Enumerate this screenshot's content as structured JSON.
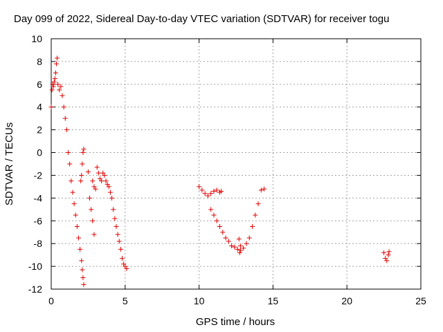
{
  "chart_data": {
    "type": "scatter",
    "title": "Day 099 of 2022, Sidereal Day-to-day VTEC variation (SDTVAR) for receiver togu",
    "xlabel": "GPS time / hours",
    "ylabel": "SDTVAR / TECUs",
    "xlim": [
      0,
      25
    ],
    "ylim": [
      -12,
      10
    ],
    "xticks": [
      "0",
      "5",
      "10",
      "15",
      "20",
      "25"
    ],
    "yticks": [
      "10",
      "8",
      "6",
      "4",
      "2",
      "0",
      "-2",
      "-4",
      "-6",
      "-8",
      "-10",
      "-12"
    ],
    "grid": true,
    "marker": "+",
    "color": "#e00000",
    "series": [
      {
        "name": "segment-1",
        "x": [
          0.0,
          0.05,
          0.1,
          0.15,
          0.2,
          0.25,
          0.3,
          0.35,
          0.4
        ],
        "y": [
          4.0,
          5.5,
          6.0,
          5.8,
          6.2,
          6.5,
          7.0,
          7.8,
          8.3
        ]
      },
      {
        "name": "segment-2",
        "x": [
          0.45,
          0.55,
          0.65,
          0.75,
          0.85,
          0.95,
          1.05,
          1.15,
          1.25,
          1.35,
          1.45,
          1.55,
          1.65,
          1.75,
          1.85,
          1.95,
          2.05,
          2.1,
          2.15,
          2.2
        ],
        "y": [
          6.0,
          5.5,
          5.8,
          5.0,
          4.0,
          3.0,
          2.0,
          0.0,
          -1.0,
          -2.5,
          -3.5,
          -4.5,
          -5.5,
          -6.5,
          -7.5,
          -8.5,
          -9.5,
          -10.3,
          -11.0,
          -11.6
        ]
      },
      {
        "name": "segment-3",
        "x": [
          2.0,
          2.05,
          2.1,
          2.15,
          2.2
        ],
        "y": [
          -2.5,
          -2.0,
          -1.0,
          0.0,
          0.3
        ]
      },
      {
        "name": "segment-4",
        "x": [
          2.5,
          2.6,
          2.7,
          2.8,
          2.9
        ],
        "y": [
          -1.7,
          -4.0,
          -5.0,
          -6.0,
          -7.2
        ]
      },
      {
        "name": "segment-5",
        "x": [
          2.8,
          2.9,
          3.0
        ],
        "y": [
          -2.5,
          -3.0,
          -3.2
        ]
      },
      {
        "name": "segment-6",
        "x": [
          3.1,
          3.2,
          3.3,
          3.4,
          3.5,
          3.6,
          3.7,
          3.8,
          3.9,
          4.0,
          4.1,
          4.2,
          4.3,
          4.4,
          4.5,
          4.6,
          4.7,
          4.8,
          4.9,
          5.0,
          5.1
        ],
        "y": [
          -1.3,
          -1.8,
          -2.3,
          -2.5,
          -1.8,
          -2.0,
          -2.5,
          -2.8,
          -3.0,
          -3.5,
          -4.0,
          -5.0,
          -5.8,
          -6.5,
          -7.2,
          -7.8,
          -8.5,
          -9.3,
          -9.8,
          -10.0,
          -10.2
        ]
      },
      {
        "name": "segment-7",
        "x": [
          10.0,
          10.2,
          10.4,
          10.6,
          10.8,
          11.0,
          11.2,
          11.4,
          11.5
        ],
        "y": [
          -3.0,
          -3.3,
          -3.6,
          -3.8,
          -3.6,
          -3.4,
          -3.3,
          -3.5,
          -3.4
        ]
      },
      {
        "name": "segment-8",
        "x": [
          10.8,
          11.0,
          11.2,
          11.4,
          11.6,
          11.8,
          12.0,
          12.2,
          12.4,
          12.6,
          12.8,
          13.0,
          13.2,
          13.4,
          13.6,
          13.8,
          14.0,
          14.2,
          14.4
        ],
        "y": [
          -5.0,
          -5.5,
          -6.0,
          -6.5,
          -7.0,
          -7.5,
          -7.8,
          -8.2,
          -8.3,
          -8.5,
          -8.6,
          -8.4,
          -8.0,
          -7.5,
          -6.5,
          -5.5,
          -4.5,
          -3.3,
          -3.2
        ]
      },
      {
        "name": "segment-9",
        "x": [
          12.7,
          12.75,
          12.8
        ],
        "y": [
          -7.6,
          -8.8,
          -8.2
        ]
      },
      {
        "name": "segment-10",
        "x": [
          22.5,
          22.6,
          22.7,
          22.8,
          22.85
        ],
        "y": [
          -8.8,
          -9.3,
          -9.5,
          -9.0,
          -8.7
        ]
      }
    ]
  }
}
